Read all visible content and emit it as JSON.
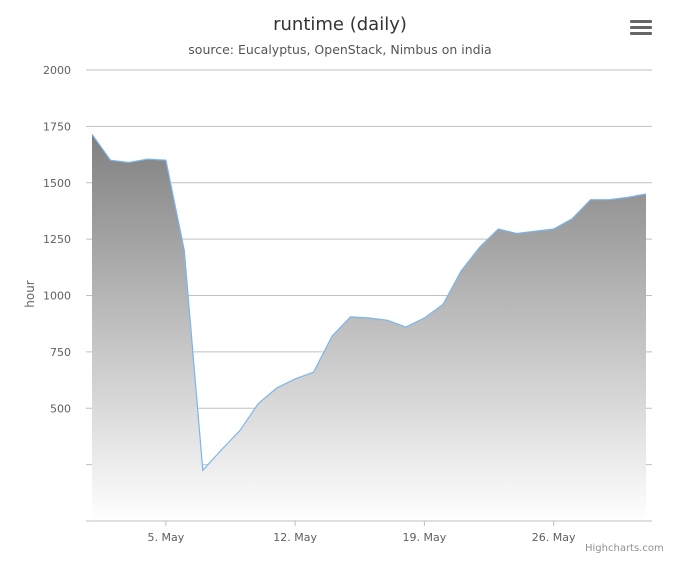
{
  "menu_icon": "hamburger-menu-icon",
  "credit": "Highcharts.com",
  "colors": {
    "line": "#7cb5ec",
    "fill_top": "#808080",
    "fill_bottom": "#ffffff",
    "grid": "#c0c0c0"
  },
  "chart_data": {
    "type": "area",
    "title": "runtime (daily)",
    "subtitle": "source: Eucalyptus, OpenStack, Nimbus on india",
    "ylabel": "hour",
    "xlabel": "",
    "ylim": [
      0,
      2000
    ],
    "yticks": [
      {
        "value": 2000,
        "label": "2000"
      },
      {
        "value": 1750,
        "label": "1750"
      },
      {
        "value": 1500,
        "label": "1500"
      },
      {
        "value": 1250,
        "label": "1250"
      },
      {
        "value": 1000,
        "label": "1000"
      },
      {
        "value": 750,
        "label": "750"
      },
      {
        "value": 500,
        "label": "500"
      },
      {
        "value": 250,
        "label": ""
      }
    ],
    "xticks": [
      {
        "label": "5. May",
        "day": 5
      },
      {
        "label": "12. May",
        "day": 12
      },
      {
        "label": "19. May",
        "day": 19
      },
      {
        "label": "26. May",
        "day": 26
      }
    ],
    "grid": true,
    "legend": "none",
    "x": [
      "May 1",
      "May 2",
      "May 3",
      "May 4",
      "May 5",
      "May 6",
      "May 7",
      "May 8",
      "May 9",
      "May 10",
      "May 11",
      "May 12",
      "May 13",
      "May 14",
      "May 15",
      "May 16",
      "May 17",
      "May 18",
      "May 19",
      "May 20",
      "May 21",
      "May 22",
      "May 23",
      "May 24",
      "May 25",
      "May 26",
      "May 27",
      "May 28",
      "May 29",
      "May 30",
      "May 31"
    ],
    "values": [
      1715,
      1600,
      1590,
      1605,
      1600,
      1200,
      225,
      315,
      400,
      520,
      590,
      630,
      660,
      820,
      905,
      900,
      890,
      860,
      900,
      960,
      1110,
      1215,
      1295,
      1275,
      1285,
      1295,
      1340,
      1425,
      1425,
      1435,
      1450
    ]
  }
}
